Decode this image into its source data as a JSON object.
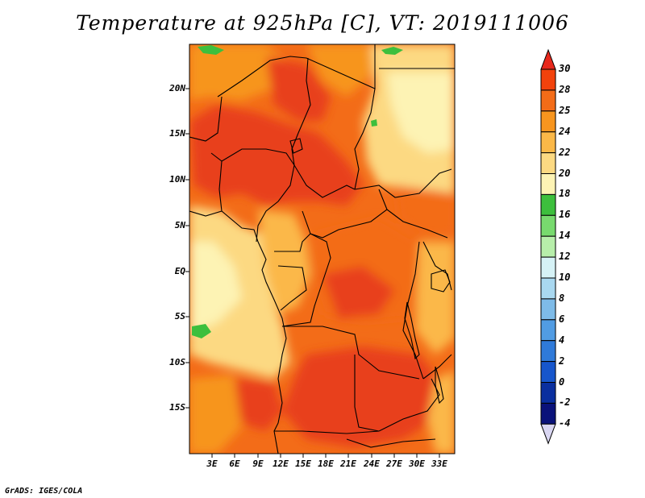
{
  "title": "Temperature at 925hPa [C], VT: 2019111006",
  "credit": "GrADS: IGES/COLA",
  "lat_labels": [
    "20N",
    "15N",
    "10N",
    "5N",
    "EQ",
    "5S",
    "10S",
    "15S"
  ],
  "lon_labels": [
    "3E",
    "6E",
    "9E",
    "12E",
    "15E",
    "18E",
    "21E",
    "24E",
    "27E",
    "30E",
    "33E"
  ],
  "colorbar": {
    "levels": [
      "30",
      "28",
      "25",
      "24",
      "22",
      "20",
      "18",
      "16",
      "14",
      "12",
      "10",
      "8",
      "6",
      "4",
      "2",
      "0",
      "-2",
      "-4"
    ],
    "colors": [
      "#e8281c",
      "#f2420c",
      "#f36c18",
      "#f7951e",
      "#fbb848",
      "#fcd982",
      "#fdf3b4",
      "#3dbf3d",
      "#78da6e",
      "#b7eeaa",
      "#d6f2f6",
      "#a9d8f0",
      "#7ebbe8",
      "#519ce3",
      "#2f7ad9",
      "#1756cc",
      "#0a2f9f",
      "#0a127a",
      "#d9d6f2"
    ]
  },
  "map": {
    "colors": {
      "hot": "#e8401a",
      "warm": "#f36c18",
      "mid": "#f7951e",
      "mild": "#fbb848",
      "cool": "#fcd982",
      "pale": "#fdf3b4",
      "green": "#3dbf3d"
    }
  }
}
